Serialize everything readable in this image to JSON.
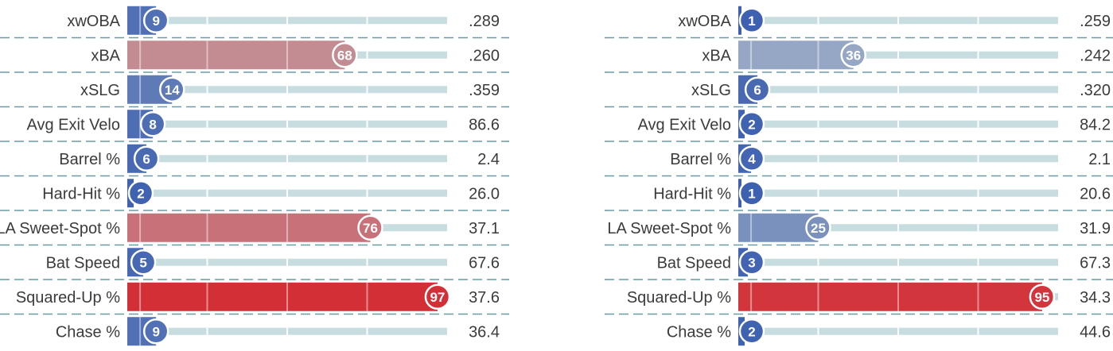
{
  "chart_data": [
    {
      "type": "bar",
      "categories": [
        "xwOBA",
        "xBA",
        "xSLG",
        "Avg Exit Velo",
        "Barrel %",
        "Hard-Hit %",
        "LA Sweet-Spot %",
        "Bat Speed",
        "Squared-Up %",
        "Chase %"
      ],
      "percentiles": [
        9,
        68,
        14,
        8,
        6,
        2,
        76,
        5,
        97,
        9
      ],
      "values": [
        ".289",
        ".260",
        ".359",
        "86.6",
        "2.4",
        "26.0",
        "37.1",
        "67.6",
        "37.6",
        "36.4"
      ],
      "xlim": [
        0,
        100
      ]
    },
    {
      "type": "bar",
      "categories": [
        "xwOBA",
        "xBA",
        "xSLG",
        "Avg Exit Velo",
        "Barrel %",
        "Hard-Hit %",
        "LA Sweet-Spot %",
        "Bat Speed",
        "Squared-Up %",
        "Chase %"
      ],
      "percentiles": [
        1,
        36,
        6,
        2,
        4,
        1,
        25,
        3,
        95,
        2
      ],
      "values": [
        ".259",
        ".242",
        ".320",
        "84.2",
        "2.1",
        "20.6",
        "31.9",
        "67.3",
        "34.3",
        "44.6"
      ],
      "xlim": [
        0,
        100
      ]
    }
  ],
  "colors": {
    "track": "#c8dde0",
    "divider": "#6a9ba5",
    "text": "#3b3b3b",
    "low": "#3a5eb0",
    "mid": "#b9c4cc",
    "high": "#d5252c"
  }
}
